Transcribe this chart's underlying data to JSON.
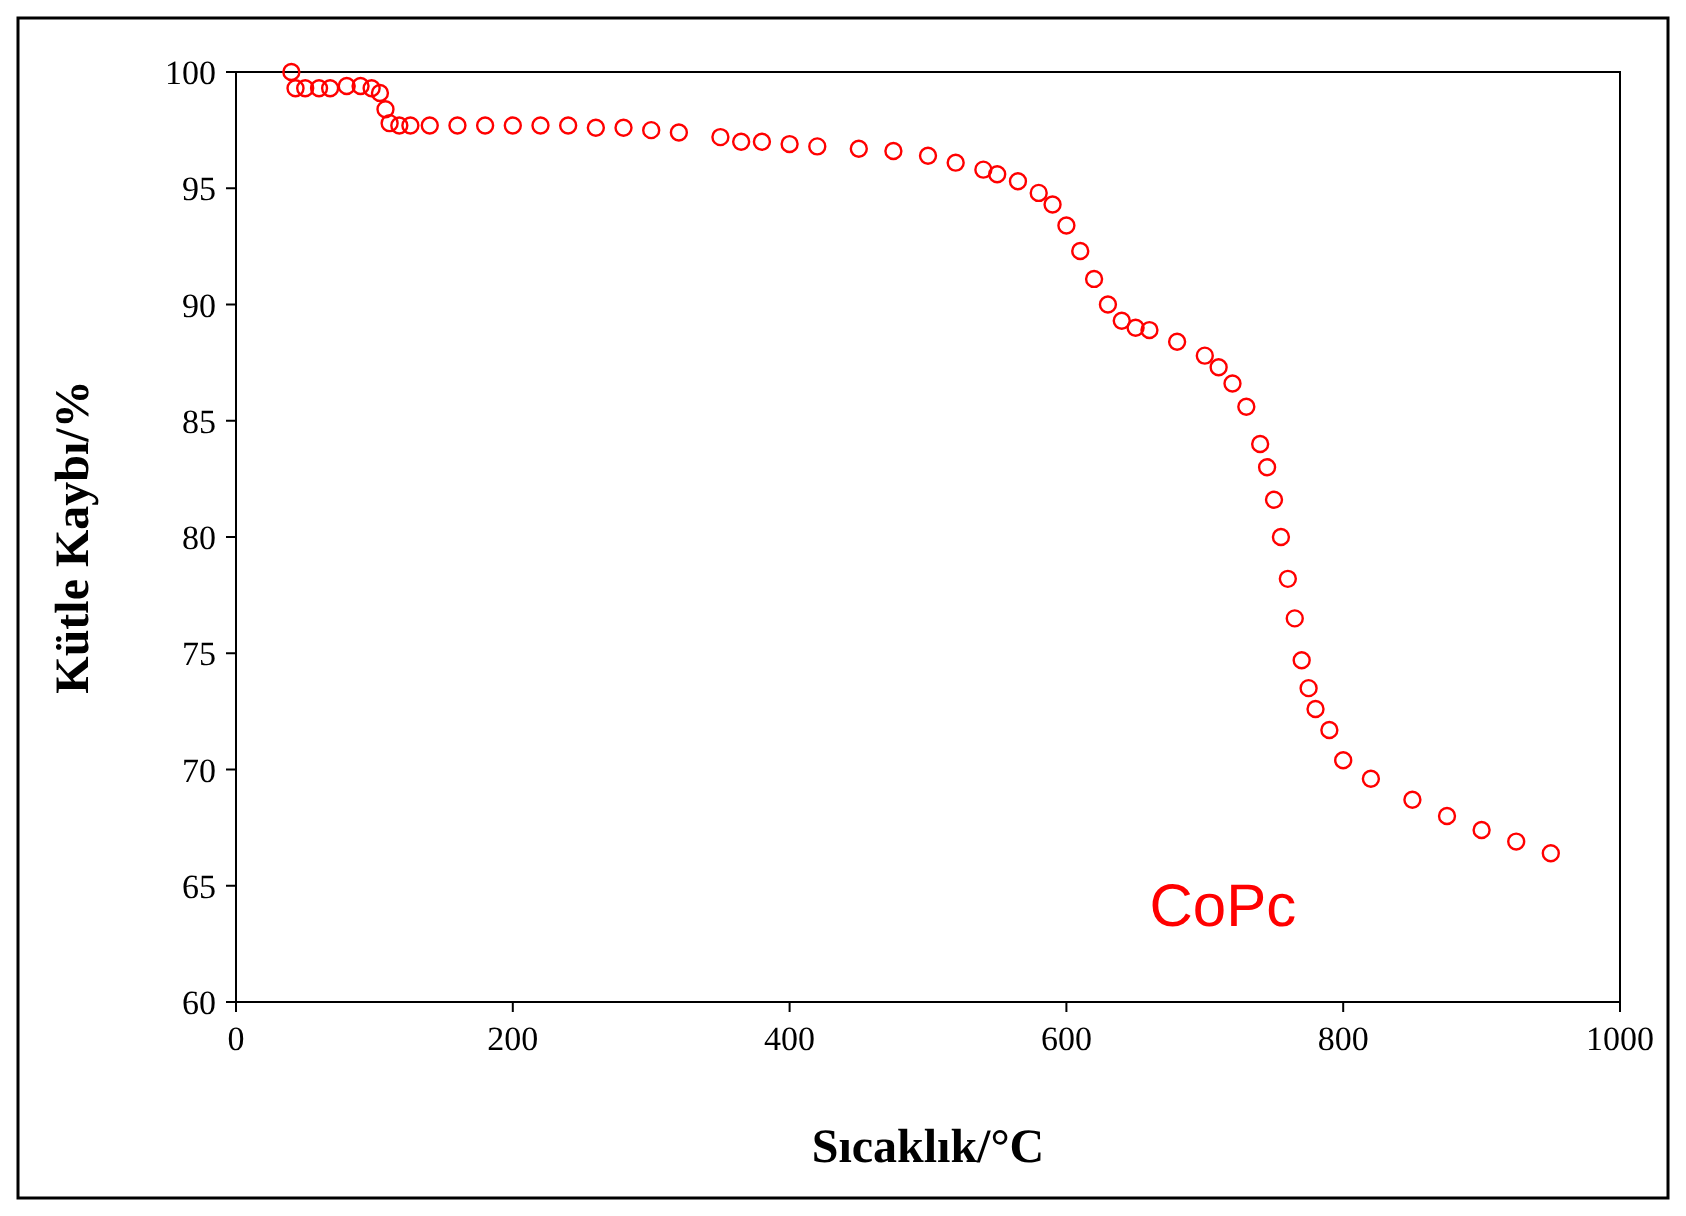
{
  "chart_data": {
    "type": "scatter",
    "xlabel": "Sıcaklık/°C",
    "ylabel": "Kütle Kaybı/%",
    "xlim": [
      0,
      1000
    ],
    "ylim": [
      60,
      100
    ],
    "xticks": [
      0,
      200,
      400,
      600,
      800,
      1000
    ],
    "yticks": [
      60,
      65,
      70,
      75,
      80,
      85,
      90,
      95,
      100
    ],
    "grid": false,
    "marker": "circle",
    "series": [
      {
        "name": "CoPc",
        "color": "#ff0000",
        "x": [
          40,
          43,
          50,
          60,
          68,
          80,
          90,
          98,
          104,
          108,
          111,
          118,
          126,
          140,
          160,
          180,
          200,
          220,
          240,
          260,
          280,
          300,
          320,
          350,
          365,
          380,
          400,
          420,
          450,
          475,
          500,
          520,
          540,
          550,
          565,
          580,
          590,
          600,
          610,
          620,
          630,
          640,
          650,
          660,
          680,
          700,
          710,
          720,
          730,
          740,
          745,
          750,
          755,
          760,
          765,
          770,
          775,
          780,
          790,
          800,
          820,
          850,
          875,
          900,
          925,
          950
        ],
        "values": [
          100.0,
          99.3,
          99.3,
          99.3,
          99.3,
          99.4,
          99.4,
          99.3,
          99.1,
          98.4,
          97.8,
          97.7,
          97.7,
          97.7,
          97.7,
          97.7,
          97.7,
          97.7,
          97.7,
          97.6,
          97.6,
          97.5,
          97.4,
          97.2,
          97.0,
          97.0,
          96.9,
          96.8,
          96.7,
          96.6,
          96.4,
          96.1,
          95.8,
          95.6,
          95.3,
          94.8,
          94.3,
          93.4,
          92.3,
          91.1,
          90.0,
          89.3,
          89.0,
          88.9,
          88.4,
          87.8,
          87.3,
          86.6,
          85.6,
          84.0,
          83.0,
          81.6,
          80.0,
          78.2,
          76.5,
          74.7,
          73.5,
          72.6,
          71.7,
          70.4,
          69.6,
          68.7,
          68.0,
          67.4,
          66.9,
          66.4
        ]
      }
    ]
  }
}
